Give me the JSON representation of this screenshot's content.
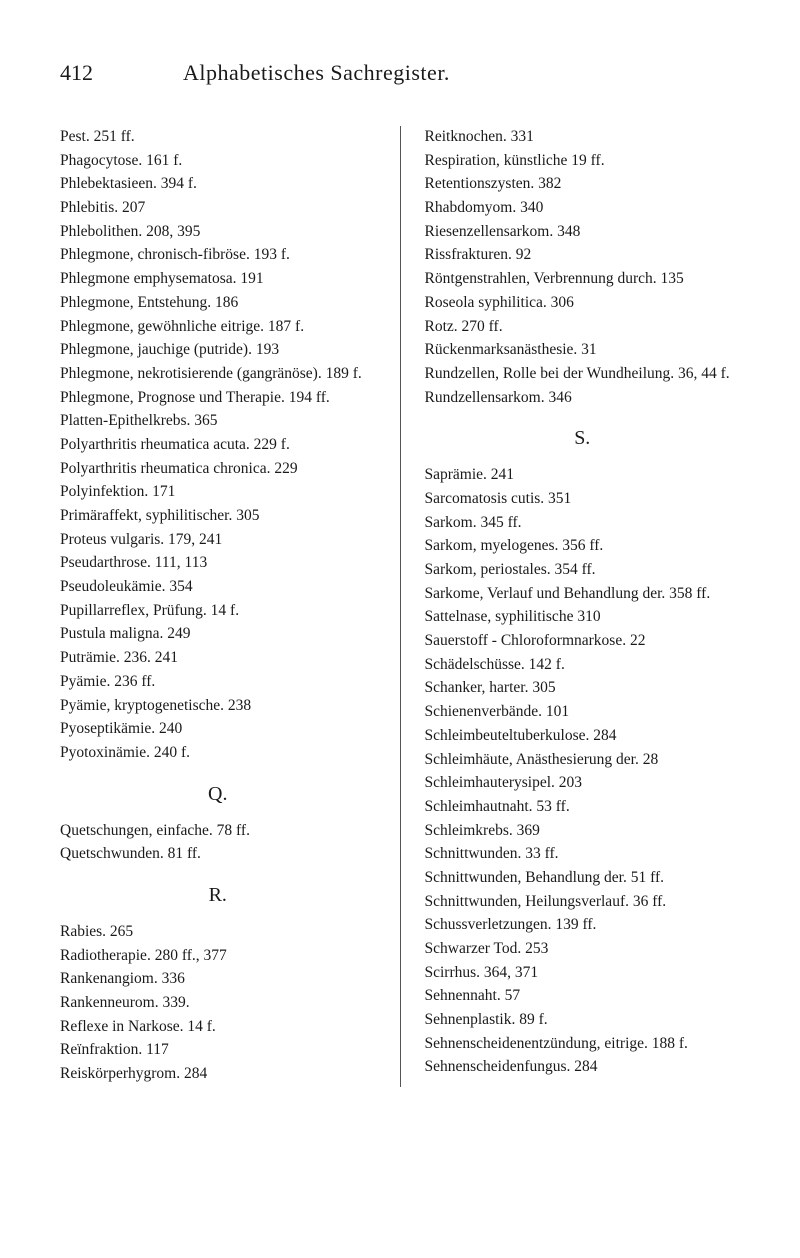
{
  "header": {
    "page_number": "412",
    "title": "Alphabetisches Sachregister."
  },
  "left_column": {
    "entries_1": [
      "Pest. 251 ff.",
      "Phagocytose. 161 f.",
      "Phlebektasieen. 394 f.",
      "Phlebitis. 207",
      "Phlebolithen. 208, 395",
      "Phlegmone, chronisch-fibröse. 193 f.",
      "Phlegmone emphysematosa. 191",
      "Phlegmone, Entstehung. 186",
      "Phlegmone, gewöhnliche eitrige. 187 f.",
      "Phlegmone, jauchige (putride). 193",
      "Phlegmone, nekrotisierende (gangränöse). 189 f.",
      "Phlegmone, Prognose und Therapie. 194 ff.",
      "Platten-Epithelkrebs. 365",
      "Polyarthritis rheumatica acuta. 229 f.",
      "Polyarthritis rheumatica chronica. 229",
      "Polyinfektion. 171",
      "Primäraffekt, syphilitischer. 305",
      "Proteus vulgaris. 179, 241",
      "Pseudarthrose. 111, 113",
      "Pseudoleukämie. 354",
      "Pupillarreflex, Prüfung. 14 f.",
      "Pustula maligna. 249",
      "Puträmie. 236. 241",
      "Pyämie. 236 ff.",
      "Pyämie, kryptogenetische. 238",
      "Pyoseptikämie. 240",
      "Pyotoxinämie. 240 f."
    ],
    "letter_q": "Q.",
    "entries_q": [
      "Quetschungen, einfache. 78 ff.",
      "Quetschwunden. 81 ff."
    ],
    "letter_r": "R.",
    "entries_r": [
      "Rabies. 265",
      "Radiotherapie. 280 ff., 377",
      "Rankenangiom. 336",
      "Rankenneurom. 339.",
      "Reflexe in Narkose. 14 f.",
      "Reïnfraktion. 117",
      "Reiskörperhygrom. 284"
    ]
  },
  "right_column": {
    "entries_1": [
      "Reitknochen. 331",
      "Respiration, künstliche 19 ff.",
      "Retentionszysten. 382",
      "Rhabdomyom. 340",
      "Riesenzellensarkom. 348",
      "Rissfrakturen. 92",
      "Röntgenstrahlen, Verbrennung durch. 135",
      "Roseola syphilitica. 306",
      "Rotz. 270 ff.",
      "Rückenmarksanästhesie. 31",
      "Rundzellen, Rolle bei der Wundheilung. 36, 44 f.",
      "Rundzellensarkom. 346"
    ],
    "letter_s": "S.",
    "entries_s": [
      "Saprämie. 241",
      "Sarcomatosis cutis. 351",
      "Sarkom. 345 ff.",
      "Sarkom, myelogenes. 356 ff.",
      "Sarkom, periostales. 354 ff.",
      "Sarkome, Verlauf und Behandlung der. 358 ff.",
      "Sattelnase, syphilitische 310",
      "Sauerstoff - Chloroformnarkose. 22",
      "Schädelschüsse. 142 f.",
      "Schanker, harter. 305",
      "Schienenverbände. 101",
      "Schleimbeuteltuberkulose. 284",
      "Schleimhäute, Anästhesierung der. 28",
      "Schleimhauterysipel. 203",
      "Schleimhautnaht. 53 ff.",
      "Schleimkrebs. 369",
      "Schnittwunden. 33 ff.",
      "Schnittwunden, Behandlung der. 51 ff.",
      "Schnittwunden, Heilungsverlauf. 36 ff.",
      "Schussverletzungen. 139 ff.",
      "Schwarzer Tod. 253",
      "Scirrhus. 364, 371",
      "Sehnennaht. 57",
      "Sehnenplastik. 89 f.",
      "Sehnenscheidenentzündung, eitrige. 188 f.",
      "Sehnenscheidenfungus. 284"
    ]
  }
}
